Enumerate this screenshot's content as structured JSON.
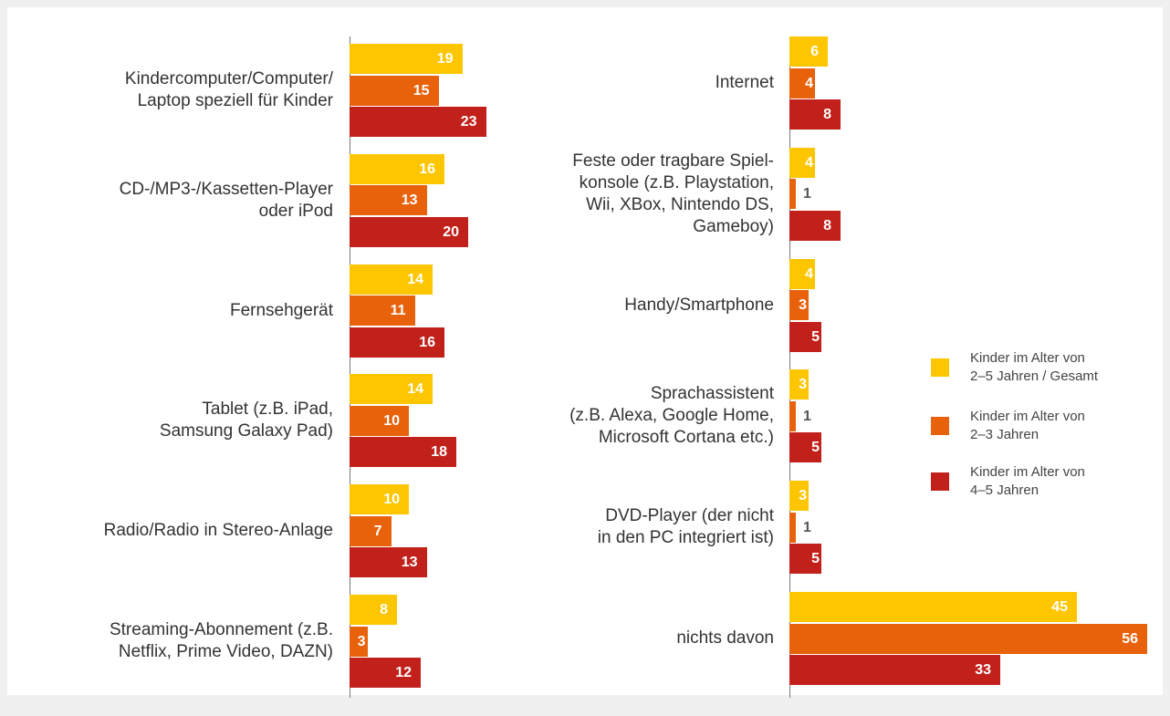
{
  "chart_data": [
    {
      "type": "bar",
      "orientation": "horizontal",
      "xlim": [
        0,
        60
      ],
      "categories": [
        "Kindercomputer/Computer/\nLaptop speziell für Kinder",
        "CD-/MP3-/Kassetten-Player\noder iPod",
        "Fernsehgerät",
        "Tablet (z.B. iPad,\nSamsung Galaxy Pad)",
        "Radio/Radio in Stereo-Anlage",
        "Streaming-Abonnement (z.B.\nNetflix, Prime Video, DAZN)"
      ],
      "series": [
        {
          "name": "Kinder im Alter von\n2–5 Jahren / Gesamt",
          "color": "#fdc600",
          "values": [
            19,
            16,
            14,
            14,
            10,
            8
          ]
        },
        {
          "name": "Kinder im Alter von\n2–3 Jahren",
          "color": "#e8610b",
          "values": [
            15,
            13,
            11,
            10,
            7,
            3
          ]
        },
        {
          "name": "Kinder im Alter von\n4–5 Jahren",
          "color": "#c2211b",
          "values": [
            23,
            20,
            16,
            18,
            13,
            12
          ]
        }
      ]
    },
    {
      "type": "bar",
      "orientation": "horizontal",
      "xlim": [
        0,
        60
      ],
      "categories": [
        "Internet",
        "Feste oder tragbare Spiel-\nkonsole (z.B. Playstation,\nWii, XBox, Nintendo DS,\nGameboy)",
        "Handy/Smartphone",
        "Sprachassistent\n(z.B. Alexa, Google Home,\nMicrosoft Cortana etc.)",
        "DVD-Player (der nicht\nin den PC integriert ist)",
        "nichts davon"
      ],
      "series": [
        {
          "color": "#fdc600",
          "values": [
            6,
            4,
            4,
            3,
            3,
            45
          ]
        },
        {
          "color": "#e8610b",
          "values": [
            4,
            1,
            3,
            1,
            1,
            56
          ]
        },
        {
          "color": "#c2211b",
          "values": [
            8,
            8,
            5,
            5,
            5,
            33
          ]
        }
      ]
    }
  ]
}
